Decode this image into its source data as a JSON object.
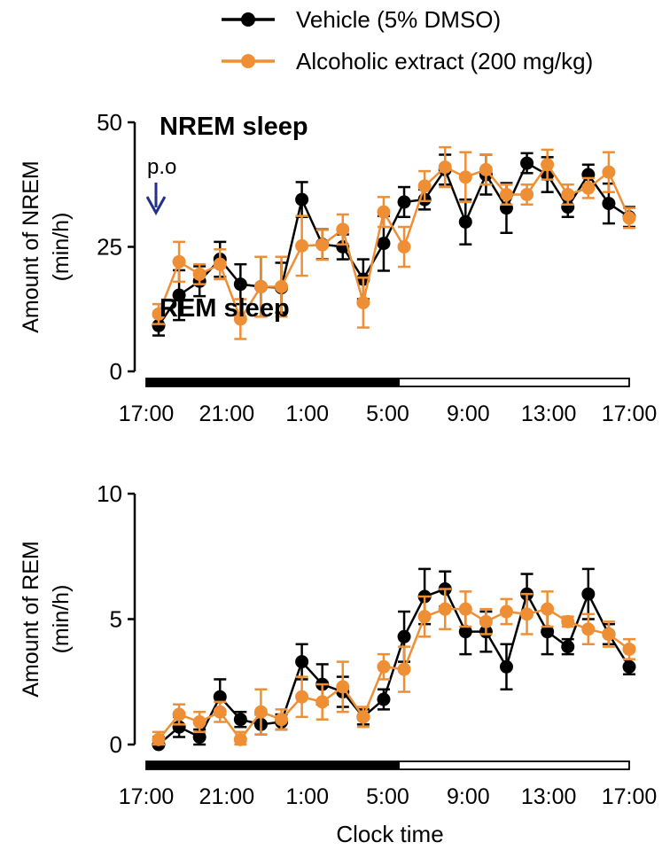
{
  "legend": {
    "entries": [
      {
        "name": "Vehicle (5% DMSO)",
        "color": "#000000"
      },
      {
        "name": "Alcoholic extract (200 mg/kg)",
        "color": "#ee8f35"
      }
    ]
  },
  "xlabel": "Clock time",
  "marker": {
    "text": "p.o",
    "color": "#23318c"
  },
  "chart_data": [
    {
      "type": "line",
      "title": "NREM sleep",
      "ylabel_line1": "Amount of NREM",
      "ylabel_line2": "(min/h)",
      "ylim": [
        0,
        50
      ],
      "yticks": [
        0,
        25,
        50
      ],
      "xticks": [
        "17:00",
        "21:00",
        "1:00",
        "5:00",
        "9:00",
        "13:00",
        "17:00"
      ],
      "x": [
        1,
        2,
        3,
        4,
        5,
        6,
        7,
        8,
        9,
        10,
        11,
        12,
        13,
        14,
        15,
        16,
        17,
        18,
        19,
        20,
        21,
        22,
        23,
        24
      ],
      "series": [
        {
          "name": "Vehicle (5% DMSO)",
          "color": "#000000",
          "values": [
            9.2,
            15.3,
            18.1,
            22.5,
            17.5,
            17.0,
            16.8,
            34.5,
            25.5,
            25.0,
            18.5,
            25.7,
            34.0,
            34.5,
            40.5,
            30.0,
            39.5,
            32.8,
            41.8,
            39.5,
            33.0,
            39.5,
            33.7,
            31.0
          ],
          "errors": [
            2.0,
            5.0,
            3.0,
            3.5,
            4.0,
            6.0,
            5.0,
            3.5,
            3.0,
            2.5,
            4.0,
            5.5,
            3.0,
            2.0,
            3.0,
            4.5,
            4.0,
            5.0,
            2.0,
            3.5,
            2.0,
            2.0,
            4.0,
            2.0
          ]
        },
        {
          "name": "Alcoholic extract (200 mg/kg)",
          "color": "#ee8f35",
          "values": [
            11.5,
            22.0,
            19.5,
            21.5,
            10.5,
            17.0,
            17.0,
            25.2,
            25.4,
            28.5,
            13.8,
            32.0,
            25.0,
            37.2,
            41.0,
            39.0,
            40.5,
            35.5,
            35.5,
            41.5,
            35.5,
            36.8,
            40.0,
            30.8
          ],
          "errors": [
            2.0,
            4.0,
            2.0,
            3.0,
            4.0,
            6.0,
            6.0,
            6.0,
            3.0,
            3.0,
            5.0,
            3.0,
            4.0,
            3.0,
            4.0,
            5.0,
            3.0,
            2.0,
            2.0,
            3.0,
            2.0,
            2.0,
            4.0,
            2.0
          ]
        }
      ]
    },
    {
      "type": "line",
      "title": "REM sleep",
      "ylabel_line1": "Amount of REM",
      "ylabel_line2": "(min/h)",
      "ylim": [
        0,
        10
      ],
      "yticks": [
        0,
        5,
        10
      ],
      "xticks": [
        "17:00",
        "21:00",
        "1:00",
        "5:00",
        "9:00",
        "13:00",
        "17:00"
      ],
      "x": [
        1,
        2,
        3,
        4,
        5,
        6,
        7,
        8,
        9,
        10,
        11,
        12,
        13,
        14,
        15,
        16,
        17,
        18,
        19,
        20,
        21,
        22,
        23,
        24
      ],
      "series": [
        {
          "name": "Vehicle (5% DMSO)",
          "color": "#000000",
          "values": [
            0.0,
            0.7,
            0.3,
            1.9,
            1.0,
            0.8,
            0.9,
            3.3,
            2.4,
            2.1,
            1.1,
            1.8,
            4.3,
            5.9,
            6.2,
            4.5,
            4.5,
            3.1,
            6.0,
            4.5,
            3.9,
            6.0,
            4.4,
            3.1
          ],
          "errors": [
            0.3,
            0.4,
            0.3,
            0.7,
            0.3,
            0.4,
            0.3,
            0.7,
            0.8,
            0.6,
            0.3,
            0.4,
            1.0,
            1.1,
            0.7,
            0.9,
            0.8,
            0.9,
            0.8,
            0.9,
            0.3,
            1.0,
            0.4,
            0.3
          ]
        },
        {
          "name": "Alcoholic extract (200 mg/kg)",
          "color": "#ee8f35",
          "values": [
            0.2,
            1.2,
            0.9,
            1.3,
            0.2,
            1.3,
            1.0,
            1.9,
            1.7,
            2.3,
            1.1,
            3.1,
            3.0,
            5.1,
            5.4,
            5.4,
            4.9,
            5.3,
            5.2,
            5.4,
            4.9,
            4.6,
            4.4,
            3.8
          ],
          "errors": [
            0.3,
            0.4,
            0.4,
            0.4,
            0.3,
            0.9,
            0.4,
            0.8,
            0.7,
            1.0,
            0.4,
            0.5,
            0.9,
            0.8,
            0.8,
            0.7,
            0.5,
            0.5,
            0.8,
            0.7,
            0.2,
            0.6,
            0.5,
            0.4
          ]
        }
      ]
    }
  ]
}
